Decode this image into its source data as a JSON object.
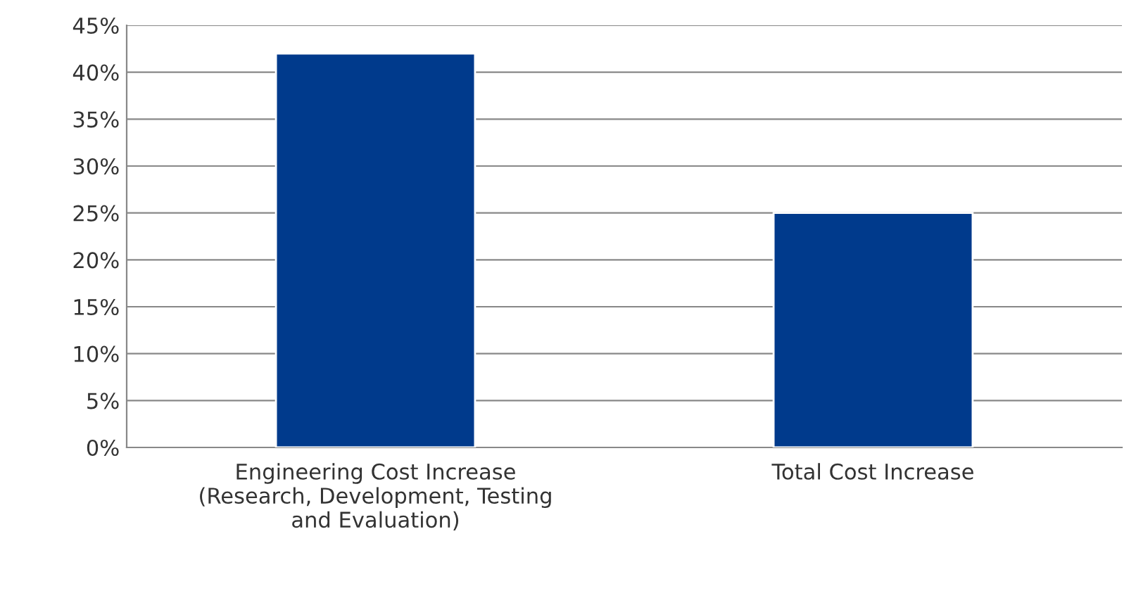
{
  "chart_data": {
    "type": "bar",
    "categories": [
      "Engineering Cost Increase\n(Research, Development, Testing\nand Evaluation)",
      "Total Cost Increase"
    ],
    "values": [
      42,
      25
    ],
    "color": "#003a8c",
    "ylim": [
      0,
      45
    ],
    "yticks": [
      {
        "value": 0,
        "label": "0%"
      },
      {
        "value": 5,
        "label": "5%"
      },
      {
        "value": 10,
        "label": "10%"
      },
      {
        "value": 15,
        "label": "15%"
      },
      {
        "value": 20,
        "label": "20%"
      },
      {
        "value": 25,
        "label": "25%"
      },
      {
        "value": 30,
        "label": "30%"
      },
      {
        "value": 35,
        "label": "35%"
      },
      {
        "value": 40,
        "label": "40%"
      },
      {
        "value": 45,
        "label": "45%"
      }
    ],
    "grid": "y"
  }
}
